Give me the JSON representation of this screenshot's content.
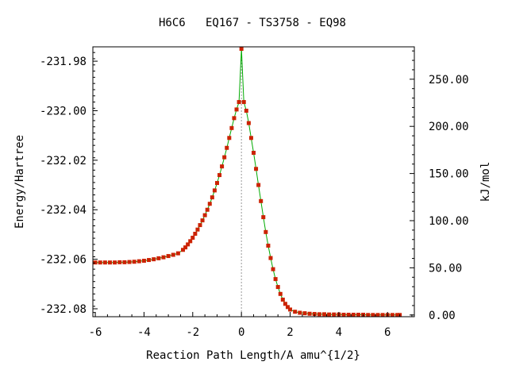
{
  "chart_data": {
    "type": "line",
    "title": "H6C6   EQ167 - TS3758 - EQ98",
    "xlabel": "Reaction Path Length/A amu^{1/2}",
    "ylabel": "Energy/Hartree",
    "y2label": "kJ/mol",
    "xlim": [
      -6.1,
      7.1
    ],
    "ylim": [
      -232.0832,
      -231.9742
    ],
    "x_ticks": [
      -6,
      -4,
      -2,
      0,
      2,
      4,
      6
    ],
    "x_tick_labels": [
      "-6",
      "-4",
      "-2",
      "0",
      "2",
      "4",
      "6"
    ],
    "y_ticks": [
      -231.98,
      -232.0,
      -232.02,
      -232.04,
      -232.06,
      -232.08
    ],
    "y_tick_labels": [
      "-231.98",
      "-232.00",
      "-232.02",
      "-232.04",
      "-232.06",
      "-232.08"
    ],
    "y2_ticks": [
      0,
      50,
      100,
      150,
      200,
      250
    ],
    "y2_tick_labels": [
      "0.00",
      "50.00",
      "100.00",
      "150.00",
      "200.00",
      "250.00"
    ],
    "y2_zero_hartree": -232.0825,
    "y2_per_hartree": 2625.5,
    "ts_marker_x": 0,
    "grid": false,
    "colors": {
      "line": "#00aa00",
      "marker": "#cc2200",
      "ts_line": "#999999",
      "axis": "#000000"
    },
    "series": [
      {
        "x": [
          -6.0,
          -5.8,
          -5.6,
          -5.4,
          -5.2,
          -5.0,
          -4.8,
          -4.6,
          -4.4,
          -4.2,
          -4.0,
          -3.8,
          -3.6,
          -3.4,
          -3.2,
          -3.0,
          -2.8,
          -2.6,
          -2.4,
          -2.3,
          -2.2,
          -2.1,
          -2.0,
          -1.9,
          -1.8,
          -1.7,
          -1.6,
          -1.5,
          -1.4,
          -1.3,
          -1.2,
          -1.1,
          -1.0,
          -0.9,
          -0.8,
          -0.7,
          -0.6,
          -0.5,
          -0.4,
          -0.3,
          -0.2,
          -0.1,
          0.0,
          0.1,
          0.2,
          0.3,
          0.4,
          0.5,
          0.6,
          0.7,
          0.8,
          0.9,
          1.0,
          1.1,
          1.2,
          1.3,
          1.4,
          1.5,
          1.6,
          1.7,
          1.8,
          1.9,
          2.0,
          2.2,
          2.4,
          2.6,
          2.8,
          3.0,
          3.2,
          3.4,
          3.6,
          3.8,
          4.0,
          4.2,
          4.4,
          4.6,
          4.8,
          5.0,
          5.2,
          5.4,
          5.6,
          5.8,
          6.0,
          6.2,
          6.4,
          6.5
        ],
        "y": [
          -232.0613,
          -232.0613,
          -232.0613,
          -232.0613,
          -232.0613,
          -232.0612,
          -232.0612,
          -232.0611,
          -232.061,
          -232.0608,
          -232.0606,
          -232.0603,
          -232.06,
          -232.0596,
          -232.0592,
          -232.0587,
          -232.0582,
          -232.0576,
          -232.0562,
          -232.0552,
          -232.054,
          -232.0527,
          -232.0513,
          -232.0497,
          -232.048,
          -232.0462,
          -232.0443,
          -232.0422,
          -232.04,
          -232.0376,
          -232.035,
          -232.0322,
          -232.0292,
          -232.026,
          -232.0225,
          -232.0188,
          -232.015,
          -232.011,
          -232.007,
          -232.003,
          -231.9995,
          -231.9965,
          -231.975,
          -231.9965,
          -232.0,
          -232.005,
          -232.011,
          -232.017,
          -232.0235,
          -232.03,
          -232.0365,
          -232.043,
          -232.049,
          -232.0545,
          -232.0595,
          -232.064,
          -232.068,
          -232.0712,
          -232.074,
          -232.0763,
          -232.078,
          -232.0793,
          -232.0803,
          -232.0812,
          -232.0816,
          -232.0818,
          -232.082,
          -232.0821,
          -232.0822,
          -232.0822,
          -232.0823,
          -232.0823,
          -232.0823,
          -232.0824,
          -232.0824,
          -232.0824,
          -232.0824,
          -232.0824,
          -232.0825,
          -232.0825,
          -232.0825,
          -232.0825,
          -232.0825,
          -232.0825,
          -232.0825,
          -232.0825
        ]
      }
    ]
  }
}
